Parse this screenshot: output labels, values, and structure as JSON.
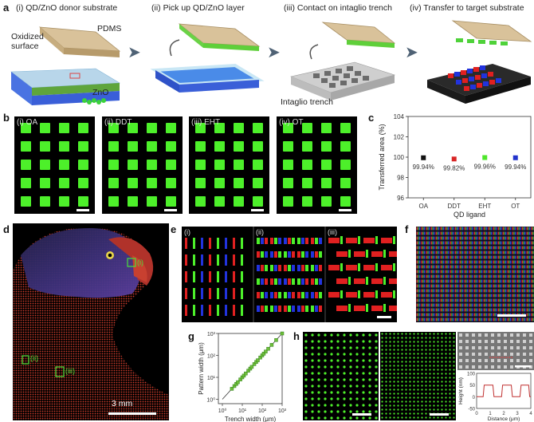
{
  "panel_a": {
    "label": "a",
    "steps": [
      {
        "text": "(i) QD/ZnO donor substrate"
      },
      {
        "text": "(ii) Pick up QD/ZnO layer"
      },
      {
        "text": "(iii) Contact on intaglio trench"
      },
      {
        "text": "(iv) Transfer to target substrate"
      }
    ],
    "annotations": {
      "pdms": "PDMS",
      "oxidized": "Oxidized",
      "surface": "surface",
      "zno": "ZnO",
      "trench": "Intaglio trench"
    }
  },
  "panel_b": {
    "label": "b",
    "images": [
      {
        "label": "(i) OA"
      },
      {
        "label": "(ii) DDT"
      },
      {
        "label": "(iii) EHT"
      },
      {
        "label": "(iv) OT"
      }
    ]
  },
  "panel_c": {
    "label": "c"
  },
  "chart_data": [
    {
      "type": "scatter",
      "categories": [
        "OA",
        "DDT",
        "EHT",
        "OT"
      ],
      "values": [
        99.94,
        99.82,
        99.96,
        99.94
      ],
      "value_labels": [
        "99.94%",
        "99.82%",
        "99.96%",
        "99.94%"
      ],
      "colors": [
        "#111111",
        "#d92626",
        "#4ee62a",
        "#2233cc"
      ],
      "xlabel": "QD ligand",
      "ylabel": "Transferred area (%)",
      "ylim": [
        96,
        104
      ],
      "yticks": [
        "96",
        "98",
        "100",
        "102",
        "104"
      ]
    },
    {
      "type": "scatter",
      "xlabel": "Trench width (μm)",
      "ylabel": "Pattern width (μm)",
      "xscale": "log",
      "yscale": "log",
      "xticks": [
        "10⁰",
        "10¹",
        "10²",
        "10³"
      ],
      "yticks": [
        "10⁰",
        "10¹",
        "10²",
        "10³"
      ],
      "x": [
        3,
        4,
        5,
        6,
        8,
        10,
        12,
        15,
        20,
        25,
        30,
        40,
        50,
        60,
        80,
        100,
        120,
        150,
        200,
        300,
        500,
        1000
      ],
      "y": [
        3,
        4,
        5,
        6,
        8,
        10,
        12,
        15,
        20,
        25,
        30,
        40,
        50,
        60,
        80,
        100,
        120,
        150,
        200,
        300,
        500,
        1000
      ]
    }
  ],
  "panel_d": {
    "label": "d",
    "scale": "3 mm",
    "roi": [
      "(i)",
      "(ii)",
      "(iii)"
    ]
  },
  "panel_e": {
    "label": "e",
    "sub": [
      "(i)",
      "(ii)",
      "(iii)"
    ]
  },
  "panel_f": {
    "label": "f"
  },
  "panel_g": {
    "label": "g"
  },
  "panel_h": {
    "label": "h",
    "inset": {
      "ylabel": "Height (nm)",
      "xlabel": "Distance (μm)",
      "yticks": [
        "100",
        "50",
        "0",
        "-50"
      ],
      "xticks": [
        "0",
        "1",
        "2",
        "3",
        "4"
      ]
    }
  },
  "colors": {
    "qd_green": "#4df02a",
    "qd_red": "#e02020",
    "qd_blue": "#2233dd",
    "arrow": "#4f6275"
  }
}
